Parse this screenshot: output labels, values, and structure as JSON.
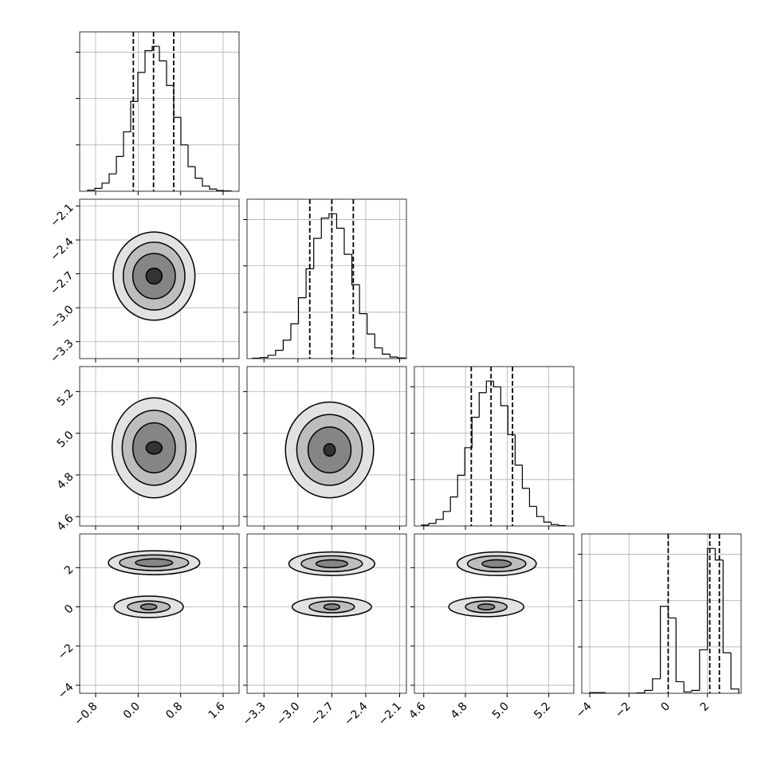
{
  "chart_data": [
    {
      "type": "histogram",
      "xlim": [
        -1.1,
        1.9
      ],
      "xticks": [
        {
          "value": -0.8,
          "label": "−0.8"
        },
        {
          "value": 0,
          "label": "0.0"
        },
        0.8,
        1.6
      ],
      "ylim": [
        0,
        1.1
      ],
      "yticks": [
        0.32,
        0.64,
        0.96
      ],
      "bins": [
        -0.95,
        -0.815,
        -0.68,
        -0.545,
        -0.41,
        -0.275,
        -0.14,
        -0.005,
        0.13,
        0.265,
        0.4,
        0.535,
        0.67,
        0.805,
        0.94,
        1.075,
        1.21,
        1.345,
        1.48,
        1.615,
        1.75
      ],
      "values": [
        0.008,
        0.02,
        0.056,
        0.12,
        0.24,
        0.41,
        0.62,
        0.82,
        0.97,
        1.0,
        0.9,
        0.73,
        0.51,
        0.32,
        0.17,
        0.09,
        0.036,
        0.015,
        0.005,
        0.002
      ],
      "quantiles": [
        -0.09,
        0.29,
        0.67
      ]
    },
    {
      "type": "contour",
      "xlim": [
        -1.1,
        1.9
      ],
      "xticks": [
        {
          "value": -0.8,
          "label": "−0.8"
        },
        {
          "value": 0,
          "label": "0.0"
        },
        0.8,
        1.6
      ],
      "ylim": [
        -3.45,
        -2.04
      ],
      "yticks": [
        {
          "value": -3.3,
          "label": "−3.3"
        },
        {
          "value": -3,
          "label": "−3.0"
        },
        {
          "value": -2.7,
          "label": "−2.7"
        },
        {
          "value": -2.4,
          "label": "−2.4"
        },
        {
          "value": -2.1,
          "label": "−2.1"
        }
      ],
      "contours": [
        {
          "x": 0.3,
          "y": -2.72,
          "radii": [
            [
              0.77,
              0.39
            ],
            [
              0.58,
              0.3
            ],
            [
              0.4,
              0.2
            ],
            [
              0.15,
              0.07
            ]
          ]
        }
      ]
    },
    {
      "type": "histogram",
      "xlim": [
        -3.45,
        -2.04
      ],
      "xticks": [
        {
          "value": -3.3,
          "label": "−3.3"
        },
        {
          "value": -3,
          "label": "−3.0"
        },
        {
          "value": -2.7,
          "label": "−2.7"
        },
        {
          "value": -2.4,
          "label": "−2.4"
        },
        {
          "value": -2.1,
          "label": "−2.1"
        }
      ],
      "ylim": [
        0,
        1.1
      ],
      "yticks": [
        0.32,
        0.64,
        0.96
      ],
      "bins": [
        -3.4,
        -3.3325,
        -3.265,
        -3.1975,
        -3.13,
        -3.0625,
        -2.995,
        -2.9275,
        -2.86,
        -2.7925,
        -2.725,
        -2.6575,
        -2.59,
        -2.5225,
        -2.455,
        -2.3875,
        -2.32,
        -2.2525,
        -2.185,
        -2.1175,
        -2.05
      ],
      "values": [
        0.003,
        0.008,
        0.023,
        0.057,
        0.127,
        0.24,
        0.42,
        0.62,
        0.83,
        0.97,
        1.0,
        0.9,
        0.72,
        0.51,
        0.31,
        0.17,
        0.074,
        0.031,
        0.011,
        0.004
      ],
      "quantiles": [
        -2.895,
        -2.7,
        -2.51
      ]
    },
    {
      "type": "contour",
      "xlim": [
        -1.1,
        1.9
      ],
      "xticks": [
        {
          "value": -0.8,
          "label": "−0.8"
        },
        {
          "value": 0,
          "label": "0.0"
        },
        0.8,
        1.6
      ],
      "ylim": [
        4.555,
        5.32
      ],
      "yticks": [
        4.6,
        4.8,
        {
          "value": 5,
          "label": "5.0"
        },
        5.2
      ],
      "contours": [
        {
          "x": 0.3,
          "y": 4.93,
          "radii": [
            [
              0.79,
              0.24
            ],
            [
              0.6,
              0.18
            ],
            [
              0.4,
              0.12
            ],
            [
              0.15,
              0.03
            ]
          ]
        }
      ]
    },
    {
      "type": "contour",
      "xlim": [
        -3.45,
        -2.04
      ],
      "xticks": [
        {
          "value": -3.3,
          "label": "−3.3"
        },
        {
          "value": -3,
          "label": "−3.0"
        },
        {
          "value": -2.7,
          "label": "−2.7"
        },
        {
          "value": -2.4,
          "label": "−2.4"
        },
        {
          "value": -2.1,
          "label": "−2.1"
        }
      ],
      "ylim": [
        4.555,
        5.32
      ],
      "yticks": [
        4.6,
        4.8,
        {
          "value": 5,
          "label": "5.0"
        },
        5.2
      ],
      "contours": [
        {
          "x": -2.72,
          "y": 4.92,
          "radii": [
            [
              0.39,
              0.23
            ],
            [
              0.29,
              0.17
            ],
            [
              0.19,
              0.11
            ],
            [
              0.05,
              0.03
            ]
          ]
        }
      ]
    },
    {
      "type": "histogram",
      "xlim": [
        4.555,
        5.32
      ],
      "xticks": [
        4.6,
        4.8,
        {
          "value": 5,
          "label": "5.0"
        },
        5.2
      ],
      "ylim": [
        0,
        1.1
      ],
      "yticks": [
        0.32,
        0.64,
        0.96
      ],
      "bins": [
        4.59,
        4.6245,
        4.659,
        4.6935,
        4.728,
        4.7625,
        4.797,
        4.8315,
        4.866,
        4.9005,
        4.935,
        4.9695,
        5.004,
        5.0385,
        5.073,
        5.1075,
        5.142,
        5.1765,
        5.211,
        5.2455,
        5.28
      ],
      "values": [
        0.006,
        0.018,
        0.045,
        0.1,
        0.2,
        0.35,
        0.54,
        0.75,
        0.92,
        1.0,
        0.96,
        0.83,
        0.63,
        0.42,
        0.26,
        0.135,
        0.065,
        0.027,
        0.01,
        0.003
      ],
      "quantiles": [
        4.828,
        4.923,
        5.026
      ]
    },
    {
      "type": "contour",
      "xlim": [
        -1.1,
        1.9
      ],
      "xticks": [
        {
          "value": -0.8,
          "label": "−0.8"
        },
        {
          "value": 0,
          "label": "0.0"
        },
        0.8,
        1.6
      ],
      "ylim": [
        -4.41,
        3.72
      ],
      "yticks": [
        {
          "value": -4,
          "label": "−4"
        },
        {
          "value": -2,
          "label": "−2"
        },
        0,
        2
      ],
      "contours": [
        {
          "x": 0.3,
          "y": 2.25,
          "radii": [
            [
              0.86,
              0.61
            ],
            [
              0.65,
              0.4
            ],
            [
              0.35,
              0.2
            ]
          ]
        },
        {
          "x": 0.2,
          "y": 0,
          "radii": [
            [
              0.65,
              0.55
            ],
            [
              0.4,
              0.3
            ],
            [
              0.15,
              0.15
            ]
          ]
        }
      ]
    },
    {
      "type": "contour",
      "xlim": [
        -3.45,
        -2.04
      ],
      "xticks": [
        {
          "value": -3.3,
          "label": "−3.3"
        },
        {
          "value": -3,
          "label": "−3.0"
        },
        {
          "value": -2.7,
          "label": "−2.7"
        },
        {
          "value": -2.4,
          "label": "−2.4"
        },
        {
          "value": -2.1,
          "label": "−2.1"
        }
      ],
      "ylim": [
        -4.41,
        3.72
      ],
      "yticks": [
        {
          "value": -4,
          "label": "−4"
        },
        {
          "value": -2,
          "label": "−2"
        },
        0,
        2
      ],
      "contours": [
        {
          "x": -2.7,
          "y": 2.2,
          "radii": [
            [
              0.38,
              0.6
            ],
            [
              0.27,
              0.4
            ],
            [
              0.14,
              0.2
            ]
          ]
        },
        {
          "x": -2.7,
          "y": 0,
          "radii": [
            [
              0.35,
              0.5
            ],
            [
              0.2,
              0.3
            ],
            [
              0.07,
              0.15
            ]
          ]
        }
      ]
    },
    {
      "type": "contour",
      "xlim": [
        4.555,
        5.32
      ],
      "xticks": [
        4.6,
        4.8,
        {
          "value": 5,
          "label": "5.0"
        },
        5.2
      ],
      "ylim": [
        -4.41,
        3.72
      ],
      "yticks": [
        {
          "value": -4,
          "label": "−4"
        },
        {
          "value": -2,
          "label": "−2"
        },
        0,
        2
      ],
      "contours": [
        {
          "x": 4.95,
          "y": 2.2,
          "radii": [
            [
              0.19,
              0.6
            ],
            [
              0.14,
              0.4
            ],
            [
              0.07,
              0.2
            ]
          ]
        },
        {
          "x": 4.9,
          "y": 0,
          "radii": [
            [
              0.18,
              0.5
            ],
            [
              0.1,
              0.3
            ],
            [
              0.04,
              0.15
            ]
          ]
        }
      ]
    },
    {
      "type": "histogram",
      "xlim": [
        -4.41,
        3.72
      ],
      "xticks": [
        {
          "value": -4,
          "label": "−4"
        },
        {
          "value": -2,
          "label": "−2"
        },
        0,
        2
      ],
      "ylim": [
        0,
        1.1
      ],
      "yticks": [
        0.32,
        0.64,
        0.96
      ],
      "bins": [
        -4,
        -3.6,
        -3.2,
        -2.8,
        -2.4,
        -2,
        -1.6,
        -1.2,
        -0.8,
        -0.4,
        0,
        0.4,
        0.8,
        1.2,
        1.6,
        2,
        2.4,
        2.8,
        3.2,
        3.6
      ],
      "values": [
        0.005,
        0.005,
        0,
        0,
        0,
        0,
        0.003,
        0.02,
        0.1,
        0.6,
        0.52,
        0.08,
        0.01,
        0.02,
        0.3,
        1.0,
        0.92,
        0.28,
        0.03
      ],
      "quantiles": [
        0,
        2.12,
        2.61
      ]
    }
  ]
}
